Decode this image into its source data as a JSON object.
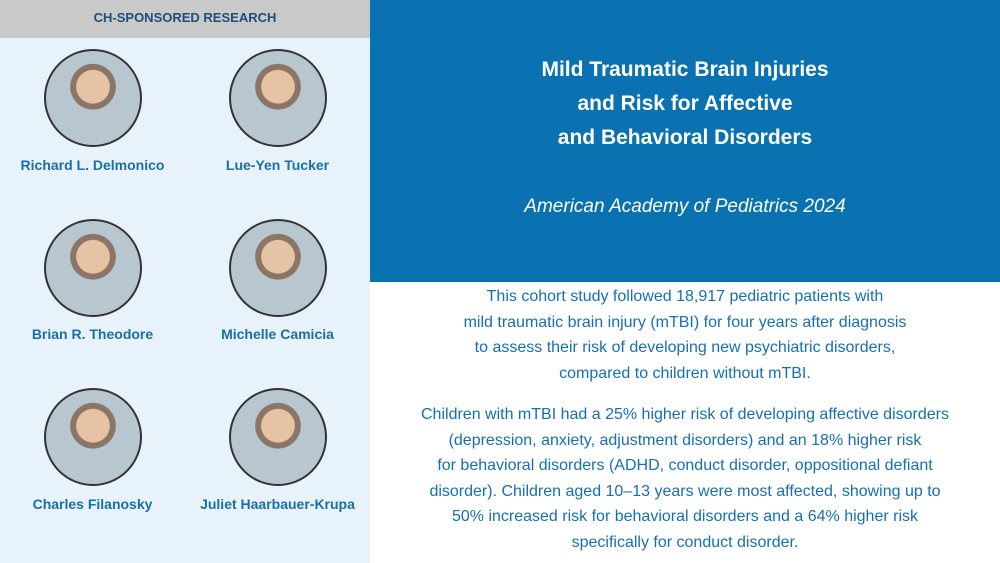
{
  "header": {
    "label": "CH-SPONSORED RESEARCH"
  },
  "authors": [
    "Richard L. Delmonico",
    "Lue-Yen Tucker",
    "Brian R. Theodore",
    "Michelle Camicia",
    "Charles Filanosky",
    "Juliet Haarbauer-Krupa"
  ],
  "title": [
    "Mild Traumatic Brain Injuries",
    "and Risk for Affective",
    "and Behavioral Disorders"
  ],
  "subtitle": "American Academy of Pediatrics 2024",
  "paragraphs": [
    [
      "This cohort study followed 18,917 pediatric patients with",
      "mild traumatic brain injury (mTBI) for four years after diagnosis",
      "to assess their risk of developing new psychiatric disorders,",
      "compared to children without mTBI."
    ],
    [
      "Children with mTBI had a 25% higher risk of developing affective disorders",
      "(depression, anxiety, adjustment disorders) and an 18% higher risk",
      "for behavioral disorders (ADHD, conduct disorder, oppositional defiant",
      "disorder). Children aged 10–13 years were most affected, showing up to",
      "50% increased risk for behavioral disorders and a 64% higher risk",
      "specifically for conduct disorder."
    ]
  ]
}
